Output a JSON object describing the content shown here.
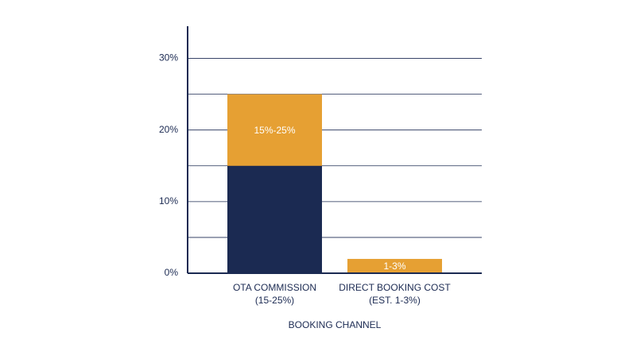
{
  "chart_data": {
    "type": "stacked-bar",
    "categories": [
      [
        "OTA COMMISSION",
        "(15-25%)"
      ],
      [
        "DIRECT BOOKING COST",
        "(EST. 1-3%)"
      ]
    ],
    "series": [
      {
        "color": "#1b2a52",
        "values": [
          15,
          0
        ]
      },
      {
        "color": "#e6a033",
        "values": [
          10,
          2
        ]
      }
    ],
    "annotations": [
      {
        "text": "15%-25%",
        "category": 0
      },
      {
        "text": "1-3%",
        "category": 1
      }
    ],
    "x_label": "BOOKING CHANNEL",
    "ylim": [
      0,
      34.5
    ],
    "yticks": [
      {
        "value": 0,
        "label": "0%"
      },
      {
        "value": 10,
        "label": "10%"
      },
      {
        "value": 20,
        "label": "20%"
      },
      {
        "value": 30,
        "label": "30%"
      }
    ],
    "minor_gridlines": [
      5,
      15,
      25
    ],
    "grid": true
  }
}
